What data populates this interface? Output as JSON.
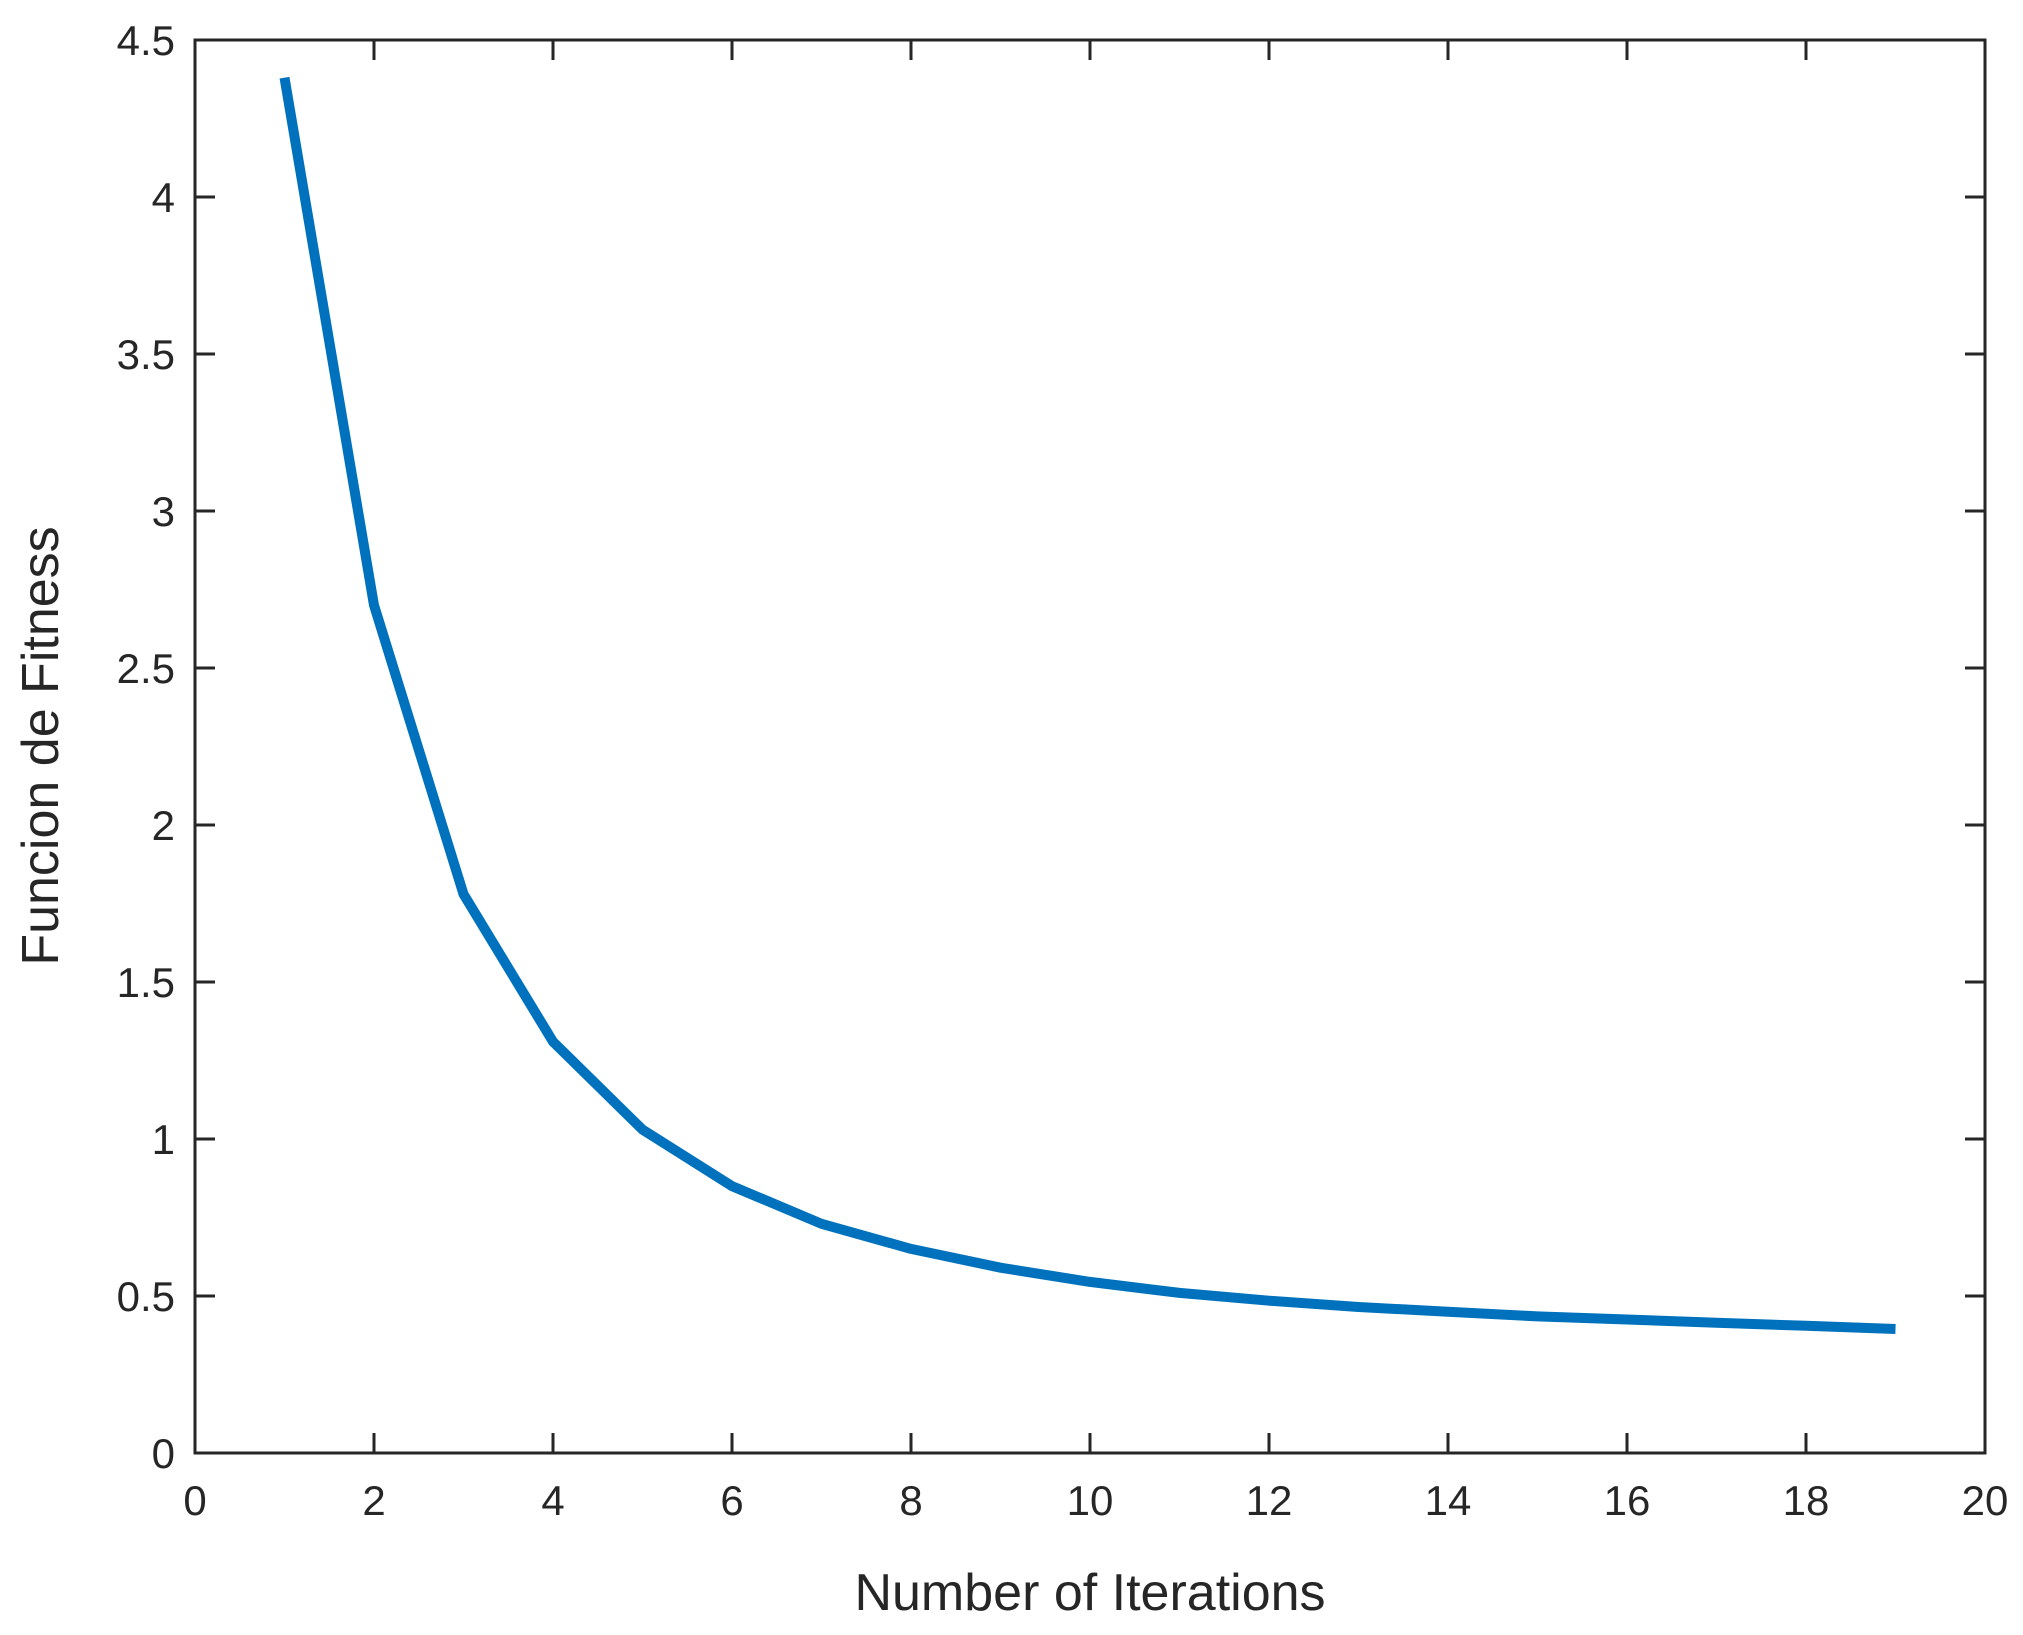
{
  "chart_data": {
    "type": "line",
    "title": "",
    "xlabel": "Number of Iterations",
    "ylabel": "Funcion de Fitness",
    "xlim": [
      0,
      20
    ],
    "ylim": [
      0,
      4.5
    ],
    "x_ticks": [
      "0",
      "2",
      "4",
      "6",
      "8",
      "10",
      "12",
      "14",
      "16",
      "18",
      "20"
    ],
    "y_ticks": [
      "0",
      "0.5",
      "1",
      "1.5",
      "2",
      "2.5",
      "3",
      "3.5",
      "4",
      "4.5"
    ],
    "grid": false,
    "box": true,
    "series": [
      {
        "color": "#0072BD",
        "x": [
          1,
          2,
          3,
          4,
          5,
          6,
          7,
          8,
          9,
          10,
          11,
          12,
          13,
          14,
          15,
          16,
          17,
          18,
          19
        ],
        "y": [
          4.38,
          2.7,
          1.78,
          1.31,
          1.03,
          0.85,
          0.73,
          0.65,
          0.59,
          0.545,
          0.51,
          0.485,
          0.465,
          0.45,
          0.435,
          0.425,
          0.415,
          0.405,
          0.395
        ]
      }
    ]
  }
}
